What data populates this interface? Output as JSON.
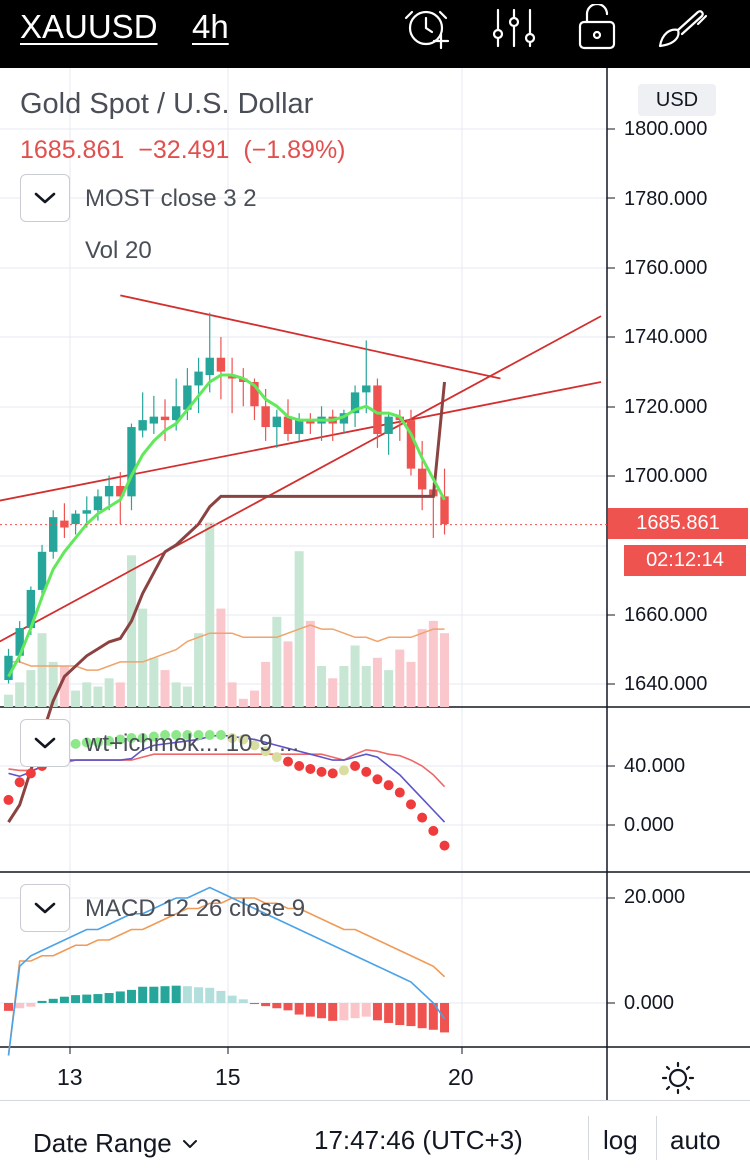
{
  "toolbar": {
    "symbol": "XAUUSD",
    "timeframe": "4h",
    "icons": [
      "alert-clock-icon",
      "indicators-sliders-icon",
      "lock-icon",
      "drawing-brush-icon"
    ]
  },
  "legend": {
    "title": "Gold Spot / U.S. Dollar",
    "last_price": "1685.861",
    "change": "−32.491",
    "change_pct": "(−1.89%)",
    "indicator_1": "MOST close 3 2",
    "indicator_2": "Vol 20",
    "currency": "USD"
  },
  "price_axis": {
    "labels": [
      "1800.000",
      "1780.000",
      "1760.000",
      "1740.000",
      "1720.000",
      "1700.000",
      "1660.000",
      "1640.000"
    ],
    "last_price_tag": "1685.861",
    "countdown_tag": "02:12:14"
  },
  "wt_pane": {
    "label": "wt+ichmok...  10 9 ...",
    "axis_labels": [
      "40.000",
      "0.000"
    ]
  },
  "macd_pane": {
    "label": "MACD 12 26 close 9",
    "axis_labels": [
      "20.000",
      "0.000"
    ]
  },
  "time_axis": {
    "labels": [
      "13",
      "15",
      "20"
    ]
  },
  "bottom_bar": {
    "date_range": "Date Range",
    "clock": "17:47:46 (UTC+3)",
    "log": "log",
    "auto": "auto"
  },
  "colors": {
    "up": "#26a69a",
    "down": "#ef5350",
    "trendline": "#d32f2f",
    "most_line": "#8b4342",
    "ema_line": "#62e85b",
    "toolbar_bg": "#000000",
    "grid": "#e6eaf0"
  },
  "chart_data": {
    "type": "candlestick",
    "symbol": "XAUUSD",
    "timeframe": "4h",
    "candles_ohlc": [
      [
        1641,
        1650,
        1640,
        1648
      ],
      [
        1648,
        1658,
        1646,
        1656
      ],
      [
        1656,
        1668,
        1654,
        1667
      ],
      [
        1667,
        1680,
        1664,
        1678
      ],
      [
        1678,
        1690,
        1676,
        1688
      ],
      [
        1687,
        1692,
        1682,
        1685
      ],
      [
        1686,
        1690,
        1683,
        1689
      ],
      [
        1689,
        1694,
        1685,
        1690
      ],
      [
        1690,
        1696,
        1687,
        1694
      ],
      [
        1694,
        1700,
        1690,
        1697
      ],
      [
        1697,
        1701,
        1686,
        1694
      ],
      [
        1694,
        1715,
        1690,
        1714
      ],
      [
        1713,
        1724,
        1711,
        1716
      ],
      [
        1715,
        1723,
        1712,
        1717
      ],
      [
        1717,
        1722,
        1710,
        1716
      ],
      [
        1716,
        1728,
        1713,
        1720
      ],
      [
        1719,
        1731,
        1716,
        1726
      ],
      [
        1726,
        1734,
        1718,
        1730
      ],
      [
        1729,
        1747,
        1724,
        1734
      ],
      [
        1734,
        1740,
        1722,
        1730
      ],
      [
        1729,
        1734,
        1718,
        1728
      ],
      [
        1728,
        1731,
        1720,
        1727
      ],
      [
        1727,
        1728,
        1716,
        1720
      ],
      [
        1720,
        1725,
        1710,
        1714
      ],
      [
        1714,
        1719,
        1708,
        1717
      ],
      [
        1717,
        1722,
        1710,
        1712
      ],
      [
        1712,
        1718,
        1710,
        1716
      ],
      [
        1716,
        1718,
        1712,
        1715
      ],
      [
        1715,
        1720,
        1710,
        1717
      ],
      [
        1717,
        1719,
        1710,
        1715
      ],
      [
        1715,
        1719,
        1712,
        1718
      ],
      [
        1718,
        1726,
        1714,
        1724
      ],
      [
        1724,
        1739,
        1718,
        1726
      ],
      [
        1726,
        1728,
        1708,
        1712
      ],
      [
        1712,
        1718,
        1706,
        1717
      ],
      [
        1717,
        1719,
        1710,
        1716
      ],
      [
        1716,
        1719,
        1700,
        1702
      ],
      [
        1702,
        1710,
        1690,
        1696
      ],
      [
        1696,
        1698,
        1682,
        1694
      ],
      [
        1694,
        1702,
        1683,
        1686
      ]
    ],
    "volume": [
      3,
      6,
      9,
      18,
      11,
      10,
      4,
      6,
      5,
      7,
      6,
      37,
      24,
      12,
      9,
      6,
      5,
      18,
      45,
      24,
      6,
      2,
      4,
      11,
      22,
      16,
      38,
      21,
      10,
      7,
      10,
      15,
      10,
      12,
      9,
      14,
      11,
      19,
      21,
      18
    ],
    "volume_ma": [
      11,
      11,
      10,
      10,
      10,
      10,
      10,
      9,
      9,
      10,
      11,
      11,
      11,
      12,
      13,
      14,
      16,
      17,
      18,
      18,
      18,
      17,
      17,
      17,
      17,
      18,
      19,
      20,
      19,
      19,
      18,
      17,
      17,
      16,
      17,
      17,
      17,
      18,
      19,
      19
    ],
    "most_exma": [
      1642,
      1648,
      1656,
      1665,
      1673,
      1678,
      1682,
      1686,
      1689,
      1691,
      1693,
      1700,
      1706,
      1710,
      1713,
      1715,
      1719,
      1723,
      1727,
      1729,
      1729,
      1728,
      1726,
      1722,
      1720,
      1717,
      1716,
      1716,
      1716,
      1716,
      1717,
      1719,
      1720,
      1718,
      1718,
      1717,
      1712,
      1705,
      1699,
      1693
    ],
    "most_line": [
      1600,
      1605,
      1615,
      1625,
      1635,
      1642,
      1645,
      1648,
      1650,
      1652,
      1653,
      1658,
      1666,
      1672,
      1678,
      1680,
      1683,
      1686,
      1691,
      1694,
      1694,
      1694,
      1694,
      1694,
      1694,
      1694,
      1694,
      1694,
      1694,
      1694,
      1694,
      1694,
      1694,
      1694,
      1694,
      1694,
      1694,
      1694,
      1694,
      1727
    ],
    "trendlines": [
      {
        "from": [
          "bar 10",
          1752
        ],
        "to": [
          "bar 44",
          1728
        ]
      },
      {
        "from": [
          "bar -2",
          1692
        ],
        "to": [
          "bar 53",
          1727
        ]
      },
      {
        "from": [
          "bar -2",
          1650
        ],
        "to": [
          "bar 53",
          1746
        ]
      }
    ],
    "price_ylim": [
      1632,
      1814
    ],
    "wt": {
      "ylim": [
        -30,
        82
      ],
      "wt1": [
        35,
        33,
        36,
        40,
        42,
        44,
        44,
        44,
        44,
        44,
        44,
        45,
        51,
        54,
        55,
        56,
        57,
        58,
        60,
        61,
        60,
        59,
        58,
        56,
        54,
        52,
        50,
        48,
        46,
        44,
        44,
        46,
        48,
        46,
        40,
        34,
        26,
        18,
        10,
        2
      ],
      "wt2": [
        38,
        37,
        37,
        39,
        41,
        42,
        44,
        44,
        44,
        44,
        44,
        44,
        46,
        48,
        48,
        48,
        48,
        48,
        48,
        48,
        48,
        48,
        48,
        48,
        48,
        48,
        48,
        48,
        48,
        46,
        44,
        48,
        51,
        50,
        48,
        47,
        44,
        40,
        34,
        26
      ],
      "dots": [
        {
          "v": 17,
          "c": "red"
        },
        {
          "v": 29,
          "c": "red"
        },
        {
          "v": 35,
          "c": "red"
        },
        {
          "v": 40,
          "c": "red"
        },
        {
          "v": 46,
          "c": "lightgreen"
        },
        {
          "v": 52,
          "c": "lightgreen"
        },
        {
          "v": 55,
          "c": "lightgreen"
        },
        {
          "v": 56,
          "c": "lightgreen"
        },
        {
          "v": 56,
          "c": "lightgreen"
        },
        {
          "v": 57,
          "c": "lightgreen"
        },
        {
          "v": 58,
          "c": "lightgreen"
        },
        {
          "v": 59,
          "c": "lightgreen"
        },
        {
          "v": 59,
          "c": "lightgreen"
        },
        {
          "v": 60,
          "c": "lightgreen"
        },
        {
          "v": 61,
          "c": "lightgreen"
        },
        {
          "v": 61,
          "c": "lightgreen"
        },
        {
          "v": 61,
          "c": "lightgreen"
        },
        {
          "v": 61,
          "c": "lightgreen"
        },
        {
          "v": 61,
          "c": "lightgreen"
        },
        {
          "v": 61,
          "c": "lightgreen"
        },
        {
          "v": 59,
          "c": "khaki"
        },
        {
          "v": 58,
          "c": "khaki"
        },
        {
          "v": 54,
          "c": "khaki"
        },
        {
          "v": 50,
          "c": "khaki"
        },
        {
          "v": 46,
          "c": "khaki"
        },
        {
          "v": 43,
          "c": "red"
        },
        {
          "v": 40,
          "c": "red"
        },
        {
          "v": 38,
          "c": "red"
        },
        {
          "v": 36,
          "c": "red"
        },
        {
          "v": 35,
          "c": "red"
        },
        {
          "v": 37,
          "c": "khaki"
        },
        {
          "v": 40,
          "c": "red"
        },
        {
          "v": 36,
          "c": "red"
        },
        {
          "v": 31,
          "c": "red"
        },
        {
          "v": 27,
          "c": "red"
        },
        {
          "v": 22,
          "c": "red"
        },
        {
          "v": 14,
          "c": "red"
        },
        {
          "v": 5,
          "c": "red"
        },
        {
          "v": -4,
          "c": "red"
        },
        {
          "v": -14,
          "c": "red"
        }
      ]
    },
    "macd": {
      "ylim": [
        -9,
        25
      ],
      "macd": [
        -10,
        7,
        9,
        10,
        11,
        12,
        13,
        14,
        14,
        15,
        16,
        17,
        17,
        18,
        19,
        20,
        20,
        21,
        22,
        21,
        20,
        19,
        18,
        17,
        16,
        15,
        14,
        13,
        12,
        11,
        10,
        9,
        8,
        7,
        6,
        5,
        4,
        2,
        0,
        -3
      ],
      "signal": [
        -10,
        8,
        8,
        9,
        9,
        10,
        11,
        11,
        12,
        12,
        13,
        14,
        14,
        15,
        16,
        17,
        18,
        18,
        19,
        19,
        20,
        20,
        20,
        19,
        19,
        18,
        18,
        17,
        16,
        15,
        14,
        14,
        13,
        12,
        11,
        10,
        9,
        8,
        7,
        5
      ],
      "hist": [
        -1.5,
        -1.0,
        -0.7,
        0.4,
        0.8,
        1.2,
        1.5,
        1.6,
        1.7,
        1.9,
        2.2,
        2.5,
        3.1,
        3.1,
        3.2,
        3.3,
        3.2,
        3.0,
        2.9,
        2.3,
        1.4,
        0.7,
        -0.2,
        -0.6,
        -1.0,
        -1.4,
        -2.2,
        -2.6,
        -2.9,
        -3.4,
        -3.3,
        -2.9,
        -2.6,
        -3.3,
        -3.8,
        -4.2,
        -4.4,
        -4.8,
        -5.1,
        -5.6
      ]
    },
    "xlabels": [
      {
        "label": "13",
        "bar": 6
      },
      {
        "label": "15",
        "bar": 19
      },
      {
        "label": "20",
        "bar": 42
      }
    ]
  }
}
